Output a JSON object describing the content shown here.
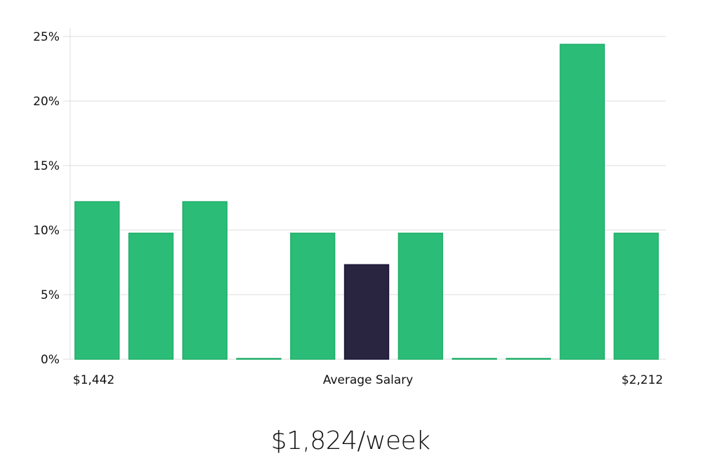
{
  "chart_data": {
    "type": "bar",
    "title": "",
    "xlabel": "Average Salary",
    "ylabel": "",
    "x_min_label": "$1,442",
    "x_max_label": "$2,212",
    "ylim": [
      0,
      25
    ],
    "yticks": [
      "0%",
      "5%",
      "10%",
      "15%",
      "20%",
      "25%"
    ],
    "ytick_values": [
      0,
      5,
      10,
      15,
      20,
      25
    ],
    "grid": true,
    "values": [
      12.2,
      9.76,
      12.2,
      0,
      9.76,
      7.32,
      9.76,
      0,
      0,
      24.39,
      9.76
    ],
    "highlight_index": 5,
    "colors": {
      "bar": "#2bbd77",
      "bar_border": "#1fae68",
      "highlight": "#29243f",
      "highlight_border": "#1a1636",
      "grid": "#dcdcdc"
    }
  },
  "headline": "$1,824/week"
}
